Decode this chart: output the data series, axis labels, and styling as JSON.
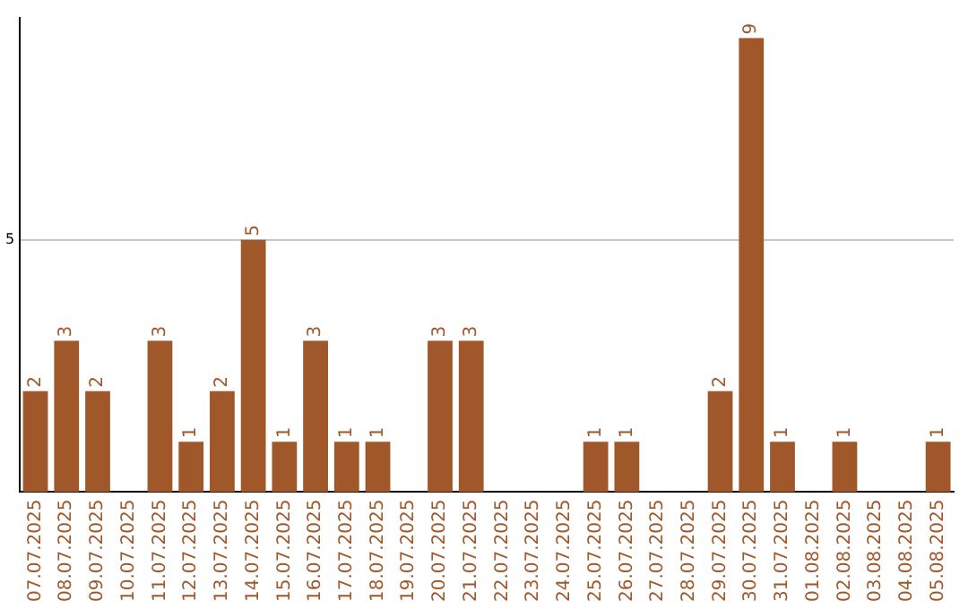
{
  "chart_data": {
    "type": "bar",
    "categories": [
      "07.07.2025",
      "08.07.2025",
      "09.07.2025",
      "10.07.2025",
      "11.07.2025",
      "12.07.2025",
      "13.07.2025",
      "14.07.2025",
      "15.07.2025",
      "16.07.2025",
      "17.07.2025",
      "18.07.2025",
      "19.07.2025",
      "20.07.2025",
      "21.07.2025",
      "22.07.2025",
      "23.07.2025",
      "24.07.2025",
      "25.07.2025",
      "26.07.2025",
      "27.07.2025",
      "28.07.2025",
      "29.07.2025",
      "30.07.2025",
      "31.07.2025",
      "01.08.2025",
      "02.08.2025",
      "03.08.2025",
      "04.08.2025",
      "05.08.2025"
    ],
    "values": [
      2,
      3,
      2,
      0,
      3,
      1,
      2,
      5,
      1,
      3,
      1,
      1,
      0,
      3,
      3,
      0,
      0,
      0,
      1,
      1,
      0,
      0,
      2,
      9,
      1,
      0,
      1,
      0,
      0,
      1
    ],
    "value_labels": [
      "2",
      "3",
      "2",
      null,
      "3",
      "1",
      "2",
      "5",
      "1",
      "3",
      "1",
      "1",
      null,
      "3",
      "3",
      null,
      null,
      null,
      "1",
      "1",
      null,
      null,
      "2",
      "9",
      "1",
      null,
      "1",
      null,
      null,
      "1"
    ],
    "color": "#a0582a",
    "ylim": [
      0,
      9.4
    ],
    "yticks": [
      5
    ],
    "grid": "y",
    "legend": false
  }
}
